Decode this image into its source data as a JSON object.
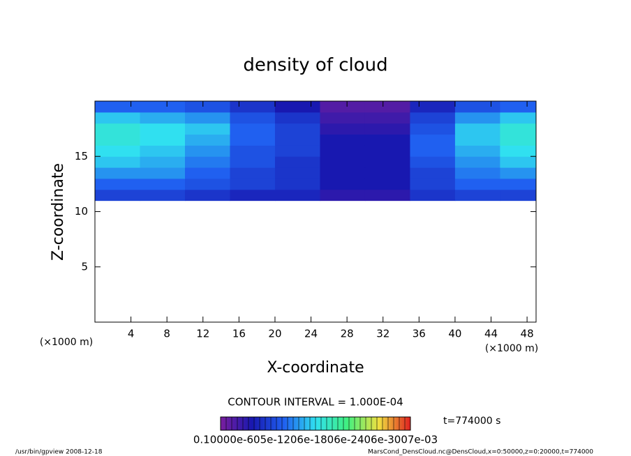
{
  "chart_data": {
    "type": "heatmap",
    "title": "density of cloud",
    "xlabel": "X-coordinate",
    "ylabel": "Z-coordinate",
    "x_unit_left": "(×1000 m)",
    "x_unit_right": "(×1000 m)",
    "xlim": [
      0,
      49
    ],
    "ylim": [
      0,
      20
    ],
    "xticks": [
      4,
      8,
      12,
      16,
      20,
      24,
      28,
      32,
      36,
      40,
      44,
      48
    ],
    "yticks": [
      5,
      10,
      15
    ],
    "x_edges": [
      0,
      5,
      10,
      15,
      20,
      25,
      30,
      35,
      40,
      45,
      49
    ],
    "y_edges": [
      11,
      12,
      13,
      14,
      15,
      16,
      17,
      18,
      19,
      20
    ],
    "z": [
      [
        8e-05,
        8e-05,
        7e-05,
        6e-05,
        6e-05,
        4e-05,
        4e-05,
        7e-05,
        8e-05,
        8e-05
      ],
      [
        0.0001,
        0.0001,
        9e-05,
        8e-05,
        7e-05,
        5e-05,
        5e-05,
        8e-05,
        0.0001,
        0.0001
      ],
      [
        0.00012,
        0.00012,
        0.0001,
        8e-05,
        7e-05,
        5e-05,
        5e-05,
        8e-05,
        0.00011,
        0.00012
      ],
      [
        0.00014,
        0.00013,
        0.00011,
        9e-05,
        7e-05,
        5e-05,
        5e-05,
        9e-05,
        0.00012,
        0.00014
      ],
      [
        0.00015,
        0.00014,
        0.00012,
        9e-05,
        8e-05,
        5e-05,
        5e-05,
        0.0001,
        0.00013,
        0.00015
      ],
      [
        0.00016,
        0.00015,
        0.00013,
        0.0001,
        8e-05,
        5e-05,
        5e-05,
        0.0001,
        0.00014,
        0.00016
      ],
      [
        0.00016,
        0.00015,
        0.00014,
        0.0001,
        8e-05,
        4e-05,
        4e-05,
        9e-05,
        0.00014,
        0.00016
      ],
      [
        0.00014,
        0.00013,
        0.00012,
        9e-05,
        7e-05,
        3e-05,
        3e-05,
        8e-05,
        0.00012,
        0.00014
      ],
      [
        0.0001,
        0.0001,
        9e-05,
        7e-05,
        5e-05,
        2e-05,
        2e-05,
        6e-05,
        9e-05,
        0.0001
      ]
    ],
    "clim": [
      0,
      0.0003
    ],
    "colormap": [
      "#7a1f9e",
      "#1818b0",
      "#2060f0",
      "#30e0f0",
      "#40f080",
      "#f0e040",
      "#e02020"
    ],
    "contour_interval": "CONTOUR INTERVAL = 1.000E-04",
    "colorbar_labels": "0.10000e-605e-1206e-1806e-2406e-3007e-03",
    "time": "t=774000 s",
    "footer_left": "/usr/bin/gpview   2008-12-18",
    "footer_right": "MarsCond_DensCloud.nc@DensCloud,x=0:50000,z=0:20000,t=774000"
  }
}
